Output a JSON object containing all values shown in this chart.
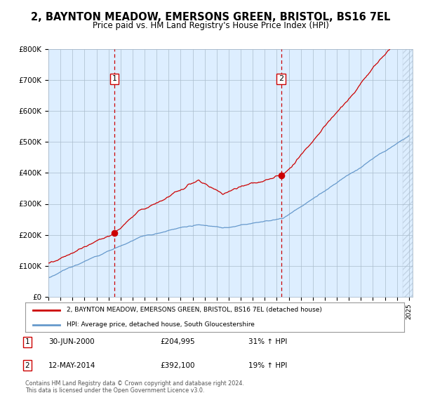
{
  "title1": "2, BAYNTON MEADOW, EMERSONS GREEN, BRISTOL, BS16 7EL",
  "title2": "Price paid vs. HM Land Registry's House Price Index (HPI)",
  "title1_fontsize": 10.5,
  "title2_fontsize": 8.5,
  "bg_color": "#ddeeff",
  "line1_color": "#cc0000",
  "line2_color": "#6699cc",
  "marker_color": "#cc0000",
  "vline_color": "#cc0000",
  "year_start": 1995,
  "year_end": 2025,
  "ylim_min": 0,
  "ylim_max": 800000,
  "yticks": [
    0,
    100000,
    200000,
    300000,
    400000,
    500000,
    600000,
    700000,
    800000
  ],
  "ytick_labels": [
    "£0",
    "£100K",
    "£200K",
    "£300K",
    "£400K",
    "£500K",
    "£600K",
    "£700K",
    "£800K"
  ],
  "sale1_year": 2000.5,
  "sale1_price": 204995,
  "sale2_year": 2014.36,
  "sale2_price": 392100,
  "legend1_label": "2, BAYNTON MEADOW, EMERSONS GREEN, BRISTOL, BS16 7EL (detached house)",
  "legend2_label": "HPI: Average price, detached house, South Gloucestershire",
  "footer": "Contains HM Land Registry data © Crown copyright and database right 2024.\nThis data is licensed under the Open Government Licence v3.0."
}
